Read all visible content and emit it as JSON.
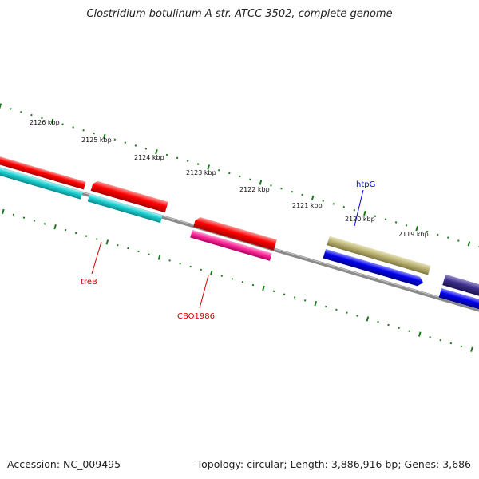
{
  "title": "Clostridium botulinum A str. ATCC 3502, complete genome",
  "accession": "Accession: NC_009495",
  "summary": "Topology: circular; Length: 3,886,916 bp; Genes: 3,686",
  "ruler": {
    "ticks": [
      {
        "label": "2126 kbp",
        "kbp": 2126
      },
      {
        "label": "2125 kbp",
        "kbp": 2125
      },
      {
        "label": "2124 kbp",
        "kbp": 2124
      },
      {
        "label": "2123 kbp",
        "kbp": 2123
      },
      {
        "label": "2122 kbp",
        "kbp": 2122
      },
      {
        "label": "2121 kbp",
        "kbp": 2121
      },
      {
        "label": "2120 kbp",
        "kbp": 2120
      },
      {
        "label": "2119 kbp",
        "kbp": 2119
      }
    ],
    "tick_color": "#1a7a1a"
  },
  "genes": [
    {
      "label": "treB",
      "color": "#cc0000"
    },
    {
      "label": "CBO1986",
      "color": "#cc0000"
    },
    {
      "label": "htpG",
      "color": "#0000cc"
    }
  ],
  "feature_colors": {
    "red": "#ff0000",
    "cyan": "#1ccfd0",
    "magenta": "#ff2a9a",
    "olive": "#b8b070",
    "blue": "#0000ee",
    "indigo": "#3d2f8a",
    "backbone": "#888888"
  }
}
